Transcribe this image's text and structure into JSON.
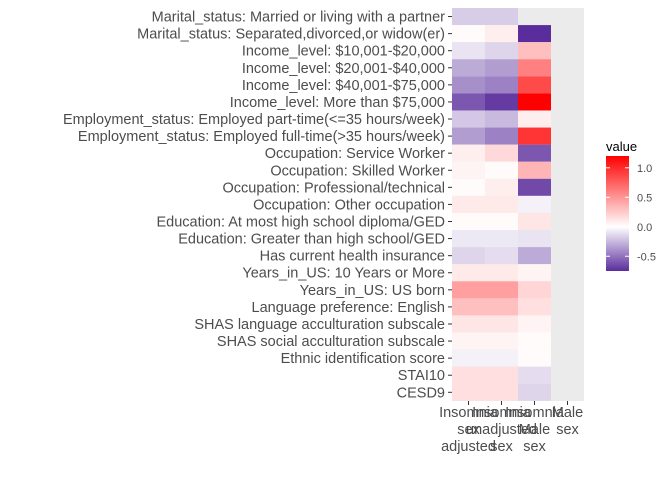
{
  "chart_data": {
    "type": "heatmap",
    "x_categories": [
      [
        "Insomnia",
        "sex",
        "adjusted"
      ],
      [
        "Insomnia",
        "unadjusted",
        "sex"
      ],
      [
        "Insomnia",
        "Male",
        "sex"
      ],
      [
        "Male",
        "sex"
      ]
    ],
    "y_categories": [
      "Marital_status: Married or living with a partner",
      "Marital_status: Separated,divorced,or widow(er)",
      "Income_level: $10,001-$20,000",
      "Income_level: $20,001-$40,000",
      "Income_level: $40,001-$75,000",
      "Income_level: More than $75,000",
      "Employment_status: Employed part-time(<=35 hours/week)",
      "Employment_status: Employed full-time(>35 hours/week)",
      "Occupation: Service Worker",
      "Occupation: Skilled Worker",
      "Occupation: Professional/technical",
      "Occupation: Other occupation",
      "Education: At most high school diploma/GED",
      "Education: Greater than high school/GED",
      "Has current health insurance",
      "Years_in_US: 10 Years or More",
      "Years_in_US: US born",
      "Language preference: English",
      "SHAS language acculturation subscale",
      "SHAS social acculturation subscale",
      "Ethnic identification score",
      "STAI10",
      "CESD9"
    ],
    "values": [
      [
        -0.18,
        -0.18,
        null,
        null
      ],
      [
        0.02,
        0.08,
        -0.75,
        null
      ],
      [
        -0.1,
        -0.15,
        0.3,
        null
      ],
      [
        -0.3,
        -0.35,
        0.6,
        null
      ],
      [
        -0.4,
        -0.45,
        0.85,
        null
      ],
      [
        -0.6,
        -0.7,
        1.2,
        null
      ],
      [
        -0.2,
        -0.25,
        0.08,
        null
      ],
      [
        -0.35,
        -0.45,
        0.95,
        null
      ],
      [
        0.08,
        0.18,
        -0.6,
        null
      ],
      [
        0.05,
        0.02,
        0.35,
        null
      ],
      [
        0.02,
        0.08,
        -0.65,
        null
      ],
      [
        0.1,
        0.1,
        -0.05,
        null
      ],
      [
        0.02,
        0.02,
        0.12,
        null
      ],
      [
        -0.08,
        -0.08,
        -0.1,
        null
      ],
      [
        -0.15,
        -0.12,
        -0.3,
        null
      ],
      [
        0.1,
        0.1,
        0.05,
        null
      ],
      [
        0.45,
        0.45,
        0.2,
        null
      ],
      [
        0.3,
        0.3,
        0.15,
        null
      ],
      [
        0.12,
        0.12,
        0.05,
        null
      ],
      [
        0.05,
        0.05,
        0.02,
        null
      ],
      [
        -0.05,
        -0.05,
        0.02,
        null
      ],
      [
        0.15,
        0.15,
        -0.12,
        null
      ],
      [
        0.15,
        0.15,
        -0.15,
        null
      ]
    ],
    "legend": {
      "title": "value",
      "ticks": [
        1.0,
        0.5,
        0.0,
        -0.5
      ],
      "tick_labels": [
        "1.0",
        "0.5",
        "0.0",
        "-0.5"
      ],
      "min": -0.75,
      "max": 1.2,
      "placement": "right"
    },
    "colors": {
      "low": "#5a2d9c",
      "mid": "#ffffff",
      "high": "#ff0000",
      "panel": "#ebebeb"
    },
    "grid": true
  }
}
